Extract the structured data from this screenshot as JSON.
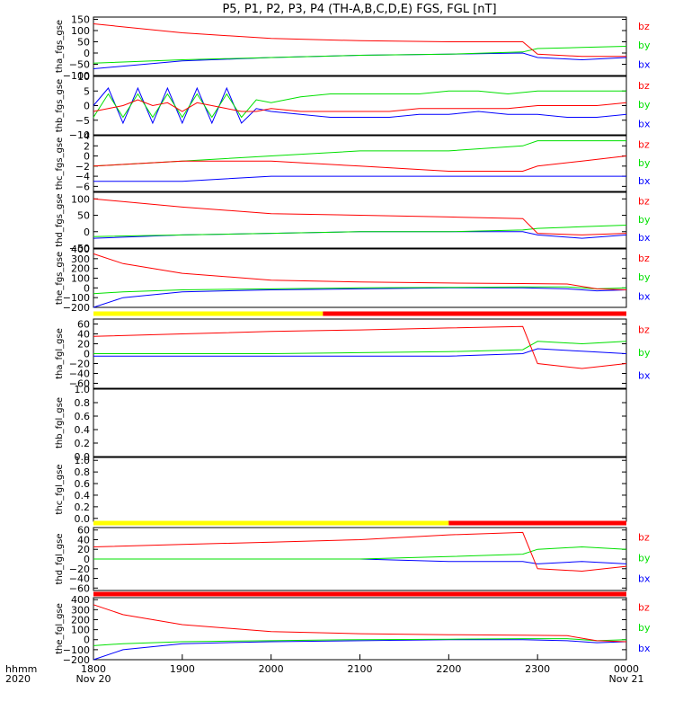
{
  "title": "P5, P1, P2, P3, P4 (TH-A,B,C,D,E) FGS, FGL [nT]",
  "colors": {
    "bx": "#0000ff",
    "by": "#00e000",
    "bz": "#ff0000",
    "bar_yellow": "#ffff00",
    "bar_red": "#ff0000",
    "axis": "#000000"
  },
  "legend_labels": [
    "bz",
    "by",
    "bx"
  ],
  "time_axis": {
    "row_label": "hhmm",
    "year_label": "2020",
    "ticks": [
      "1800",
      "1900",
      "2000",
      "2100",
      "2200",
      "2300",
      "0000"
    ],
    "date_labels": [
      {
        "at": "1800",
        "text": "Nov 20"
      },
      {
        "at": "0000",
        "text": "Nov 21"
      }
    ]
  },
  "chart_data": [
    {
      "type": "line",
      "ylabel": "tha_fgs_gse",
      "ylim": [
        -100,
        160
      ],
      "ticks": [
        150,
        100,
        50,
        0,
        -50,
        -100
      ],
      "tick_labels": [
        "150",
        "100",
        "50",
        "0",
        "−50",
        "−100"
      ],
      "grid": false,
      "series": [
        {
          "name": "bx",
          "x": [
            0,
            60,
            120,
            180,
            240,
            290,
            300,
            330,
            360
          ],
          "y": [
            -70,
            -35,
            -20,
            -10,
            -5,
            0,
            -20,
            -30,
            -20
          ]
        },
        {
          "name": "by",
          "x": [
            0,
            60,
            120,
            180,
            240,
            290,
            300,
            330,
            360
          ],
          "y": [
            -45,
            -30,
            -20,
            -10,
            -5,
            5,
            20,
            25,
            30
          ]
        },
        {
          "name": "bz",
          "x": [
            0,
            60,
            120,
            180,
            240,
            290,
            300,
            330,
            360
          ],
          "y": [
            130,
            90,
            65,
            55,
            50,
            50,
            -5,
            -15,
            -15
          ]
        }
      ]
    },
    {
      "type": "line",
      "ylabel": "thb_fgs_gse",
      "ylim": [
        -10,
        10
      ],
      "ticks": [
        10,
        5,
        0,
        -5,
        -10
      ],
      "tick_labels": [
        "10",
        "5",
        "0",
        "−5",
        "−10"
      ],
      "grid": false,
      "series": [
        {
          "name": "bx",
          "x": [
            0,
            10,
            20,
            30,
            40,
            50,
            60,
            70,
            80,
            90,
            100,
            110,
            120,
            140,
            160,
            180,
            200,
            220,
            240,
            260,
            280,
            300,
            320,
            340,
            360
          ],
          "y": [
            0,
            6,
            -6,
            6,
            -6,
            6,
            -6,
            6,
            -6,
            6,
            -6,
            -1,
            -2,
            -3,
            -4,
            -4,
            -4,
            -3,
            -3,
            -2,
            -3,
            -3,
            -4,
            -4,
            -3
          ]
        },
        {
          "name": "by",
          "x": [
            0,
            10,
            20,
            30,
            40,
            50,
            60,
            70,
            80,
            90,
            100,
            110,
            120,
            140,
            160,
            180,
            200,
            220,
            240,
            260,
            280,
            300,
            320,
            340,
            360
          ],
          "y": [
            -4,
            4,
            -4,
            4,
            -4,
            4,
            -4,
            4,
            -4,
            4,
            -4,
            2,
            1,
            3,
            4,
            4,
            4,
            4,
            5,
            5,
            4,
            5,
            5,
            5,
            5
          ]
        },
        {
          "name": "bz",
          "x": [
            0,
            10,
            20,
            30,
            40,
            50,
            60,
            70,
            80,
            90,
            100,
            110,
            120,
            140,
            160,
            180,
            200,
            220,
            240,
            260,
            280,
            300,
            320,
            340,
            360
          ],
          "y": [
            -2,
            -1,
            0,
            2,
            0,
            1,
            -2,
            1,
            0,
            -1,
            -2,
            -2,
            -1,
            -2,
            -2,
            -2,
            -2,
            -1,
            -1,
            -1,
            -1,
            0,
            0,
            0,
            1
          ]
        }
      ]
    },
    {
      "type": "line",
      "ylabel": "thc_fgs_gse",
      "ylim": [
        -7,
        4
      ],
      "ticks": [
        4,
        2,
        0,
        -2,
        -4,
        -6
      ],
      "tick_labels": [
        "4",
        "2",
        "0",
        "−2",
        "−4",
        "−6"
      ],
      "grid": false,
      "series": [
        {
          "name": "bx",
          "x": [
            0,
            60,
            120,
            180,
            240,
            290,
            300,
            330,
            360
          ],
          "y": [
            -5,
            -5,
            -4,
            -4,
            -4,
            -4,
            -4,
            -4,
            -4
          ]
        },
        {
          "name": "by",
          "x": [
            0,
            60,
            120,
            180,
            240,
            290,
            300,
            330,
            360
          ],
          "y": [
            -2,
            -1,
            0,
            1,
            1,
            2,
            3,
            3,
            3
          ]
        },
        {
          "name": "bz",
          "x": [
            0,
            60,
            120,
            180,
            240,
            290,
            300,
            330,
            360
          ],
          "y": [
            -2,
            -1,
            -1,
            -2,
            -3,
            -3,
            -2,
            -1,
            0
          ]
        }
      ]
    },
    {
      "type": "line",
      "ylabel": "thd_fgs_gse",
      "ylim": [
        -50,
        120
      ],
      "ticks": [
        100,
        50,
        0,
        -50
      ],
      "tick_labels": [
        "100",
        "50",
        "0",
        "−50"
      ],
      "grid": false,
      "series": [
        {
          "name": "bx",
          "x": [
            0,
            60,
            120,
            180,
            240,
            290,
            300,
            330,
            360
          ],
          "y": [
            -20,
            -10,
            -5,
            0,
            0,
            0,
            -10,
            -20,
            -10
          ]
        },
        {
          "name": "by",
          "x": [
            0,
            60,
            120,
            180,
            240,
            290,
            300,
            330,
            360
          ],
          "y": [
            -15,
            -10,
            -5,
            0,
            0,
            5,
            10,
            15,
            20
          ]
        },
        {
          "name": "bz",
          "x": [
            0,
            60,
            120,
            180,
            240,
            290,
            300,
            330,
            360
          ],
          "y": [
            100,
            75,
            55,
            50,
            45,
            40,
            -5,
            -10,
            -5
          ]
        }
      ]
    },
    {
      "type": "line",
      "ylabel": "the_fgs_gse",
      "ylim": [
        -200,
        400
      ],
      "ticks": [
        400,
        300,
        200,
        100,
        0,
        -100,
        -200
      ],
      "tick_labels": [
        "400",
        "300",
        "200",
        "100",
        "0",
        "−100",
        "−200"
      ],
      "grid": false,
      "series": [
        {
          "name": "bx",
          "x": [
            0,
            20,
            60,
            120,
            180,
            240,
            290,
            320,
            340,
            360
          ],
          "y": [
            -200,
            -100,
            -40,
            -20,
            -10,
            0,
            0,
            -10,
            -30,
            -20
          ]
        },
        {
          "name": "by",
          "x": [
            0,
            20,
            60,
            120,
            180,
            240,
            290,
            320,
            340,
            360
          ],
          "y": [
            -60,
            -40,
            -20,
            -10,
            0,
            5,
            10,
            10,
            -10,
            0
          ]
        },
        {
          "name": "bz",
          "x": [
            0,
            20,
            60,
            120,
            180,
            240,
            290,
            320,
            340,
            360
          ],
          "y": [
            350,
            250,
            150,
            80,
            60,
            50,
            45,
            40,
            -10,
            -20
          ]
        }
      ]
    },
    {
      "type": "line",
      "ylabel": "tha_fgl_gse",
      "ylim": [
        -70,
        70
      ],
      "ticks": [
        60,
        40,
        20,
        0,
        -20,
        -40,
        -60
      ],
      "tick_labels": [
        "60",
        "40",
        "20",
        "0",
        "−20",
        "−40",
        "−60"
      ],
      "grid": false,
      "series": [
        {
          "name": "bx",
          "x": [
            0,
            60,
            120,
            180,
            240,
            290,
            300,
            330,
            360
          ],
          "y": [
            -5,
            -5,
            -5,
            -5,
            -5,
            0,
            10,
            5,
            0
          ]
        },
        {
          "name": "by",
          "x": [
            0,
            60,
            120,
            180,
            240,
            290,
            300,
            330,
            360
          ],
          "y": [
            0,
            0,
            0,
            2,
            4,
            8,
            25,
            20,
            25
          ]
        },
        {
          "name": "bz",
          "x": [
            0,
            60,
            120,
            180,
            240,
            290,
            300,
            330,
            360
          ],
          "y": [
            35,
            40,
            45,
            48,
            52,
            55,
            -20,
            -30,
            -20
          ]
        }
      ]
    },
    {
      "type": "line",
      "ylabel": "thb_fgl_gse",
      "ylim": [
        0,
        1
      ],
      "ticks": [
        1.0,
        0.8,
        0.6,
        0.4,
        0.2,
        0.0
      ],
      "tick_labels": [
        "1.0",
        "0.8",
        "0.6",
        "0.4",
        "0.2",
        "0.0"
      ],
      "grid": false,
      "series": []
    },
    {
      "type": "line",
      "ylabel": "thc_fgl_gse",
      "ylim": [
        -0.05,
        1.05
      ],
      "ticks": [
        1.0,
        0.8,
        0.6,
        0.4,
        0.2,
        0.0
      ],
      "tick_labels": [
        "1.0",
        "0.8",
        "0.6",
        "0.4",
        "0.2",
        "0.0"
      ],
      "grid": false,
      "series": []
    },
    {
      "type": "line",
      "ylabel": "thd_fgl_gse",
      "ylim": [
        -65,
        65
      ],
      "ticks": [
        60,
        40,
        20,
        0,
        -20,
        -40,
        -60
      ],
      "tick_labels": [
        "60",
        "40",
        "20",
        "0",
        "−20",
        "−40",
        "−60"
      ],
      "grid": false,
      "series": [
        {
          "name": "bx",
          "x": [
            0,
            60,
            120,
            180,
            240,
            290,
            300,
            330,
            360
          ],
          "y": [
            0,
            0,
            0,
            0,
            -5,
            -5,
            -10,
            -5,
            -10
          ]
        },
        {
          "name": "by",
          "x": [
            0,
            60,
            120,
            180,
            240,
            290,
            300,
            330,
            360
          ],
          "y": [
            0,
            0,
            0,
            0,
            5,
            10,
            20,
            25,
            20
          ]
        },
        {
          "name": "bz",
          "x": [
            0,
            60,
            120,
            180,
            240,
            290,
            300,
            330,
            360
          ],
          "y": [
            25,
            30,
            35,
            40,
            50,
            55,
            -20,
            -25,
            -15
          ]
        }
      ]
    },
    {
      "type": "line",
      "ylabel": "the_fgl_gse",
      "ylim": [
        -200,
        420
      ],
      "ticks": [
        400,
        300,
        200,
        100,
        0,
        -100,
        -200
      ],
      "tick_labels": [
        "400",
        "300",
        "200",
        "100",
        "0",
        "−100",
        "−200"
      ],
      "grid": false,
      "series": [
        {
          "name": "bx",
          "x": [
            0,
            20,
            60,
            120,
            180,
            240,
            290,
            320,
            340,
            360
          ],
          "y": [
            -200,
            -100,
            -40,
            -20,
            -10,
            0,
            0,
            -10,
            -30,
            -20
          ]
        },
        {
          "name": "by",
          "x": [
            0,
            20,
            60,
            120,
            180,
            240,
            290,
            320,
            340,
            360
          ],
          "y": [
            -60,
            -40,
            -20,
            -10,
            0,
            5,
            10,
            10,
            -10,
            0
          ]
        },
        {
          "name": "bz",
          "x": [
            0,
            20,
            60,
            120,
            180,
            240,
            290,
            320,
            340,
            360
          ],
          "y": [
            350,
            250,
            150,
            80,
            60,
            50,
            45,
            40,
            -10,
            -20
          ]
        }
      ]
    }
  ],
  "status_bars": [
    {
      "after_panel": 4,
      "segments": [
        {
          "from": 0,
          "to": 155,
          "color": "yellow"
        },
        {
          "from": 155,
          "to": 360,
          "color": "red"
        }
      ]
    },
    {
      "after_panel": 7,
      "segments": [
        {
          "from": 0,
          "to": 240,
          "color": "yellow"
        },
        {
          "from": 240,
          "to": 360,
          "color": "red"
        }
      ]
    },
    {
      "after_panel": 8,
      "segments": [
        {
          "from": 0,
          "to": 360,
          "color": "red"
        }
      ]
    }
  ]
}
